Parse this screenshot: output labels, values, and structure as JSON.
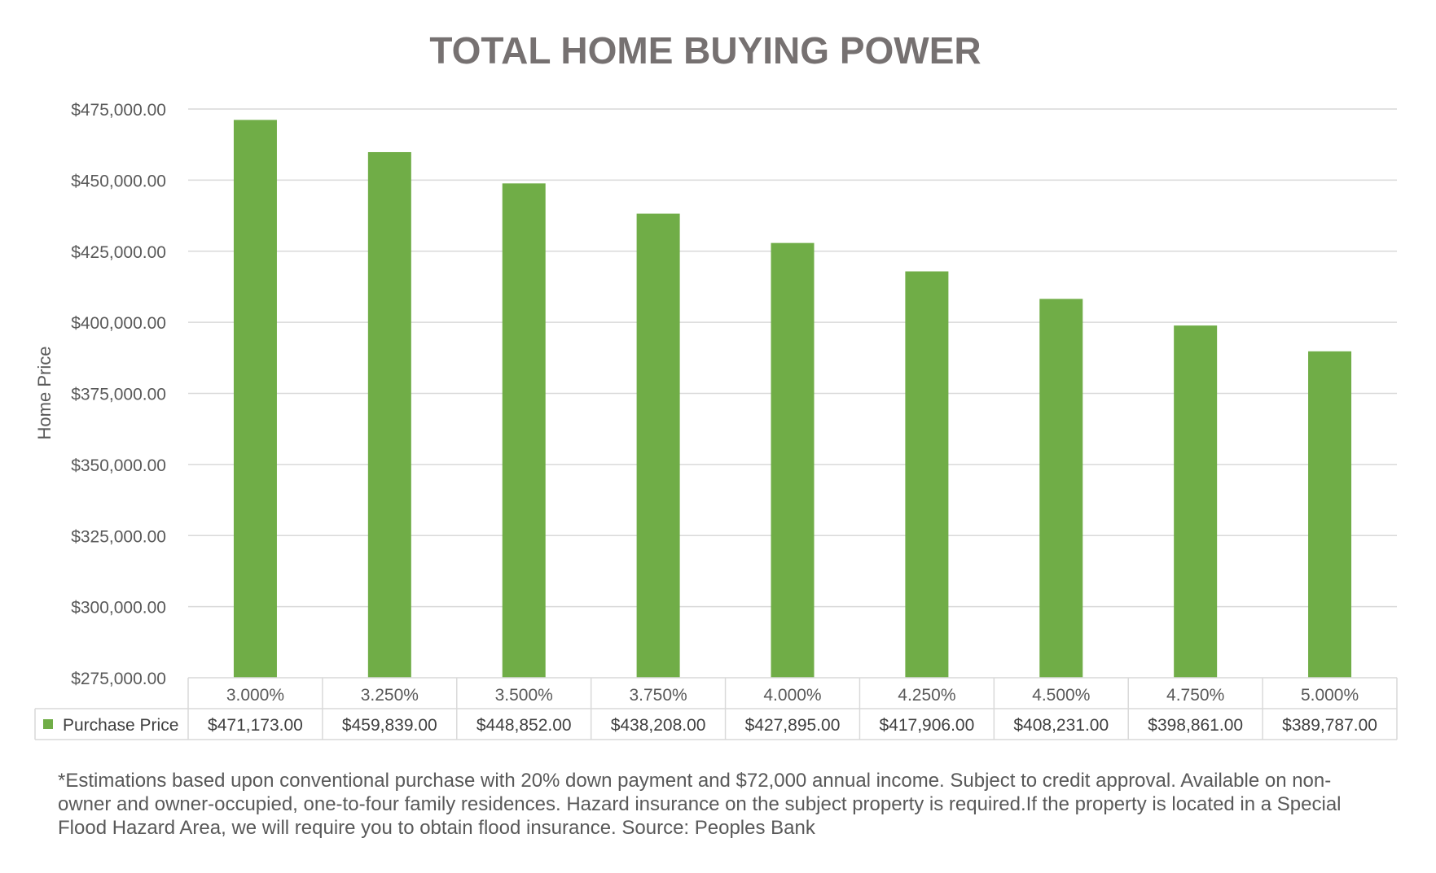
{
  "chart_data": {
    "type": "bar",
    "title": "TOTAL HOME BUYING POWER",
    "ylabel": "Home Price",
    "xlabel": "",
    "ylim": [
      275000,
      475000
    ],
    "ytick_step": 25000,
    "ytick_labels": [
      "$275,000.00",
      "$300,000.00",
      "$325,000.00",
      "$350,000.00",
      "$375,000.00",
      "$400,000.00",
      "$425,000.00",
      "$450,000.00",
      "$475,000.00"
    ],
    "categories": [
      "3.000%",
      "3.250%",
      "3.500%",
      "3.750%",
      "4.000%",
      "4.250%",
      "4.500%",
      "4.750%",
      "5.000%"
    ],
    "series": [
      {
        "name": "Purchase Price",
        "color": "#70AD47",
        "values": [
          471173,
          459839,
          448852,
          438208,
          427895,
          417906,
          408231,
          398861,
          389787
        ],
        "labels": [
          "$471,173.00",
          "$459,839.00",
          "$448,852.00",
          "$438,208.00",
          "$427,895.00",
          "$417,906.00",
          "$408,231.00",
          "$398,861.00",
          "$389,787.00"
        ]
      }
    ],
    "grid": true,
    "legend": "data-table",
    "data_table": true
  },
  "footnote": "*Estimations based upon conventional purchase with 20% down payment and $72,000 annual income. Subject to credit approval. Available on non-owner and owner-occupied, one-to-four family residences. Hazard insurance on the subject property is required.If the property is located in a Special Flood Hazard Area, we will require you to obtain flood insurance. Source: Peoples Bank"
}
